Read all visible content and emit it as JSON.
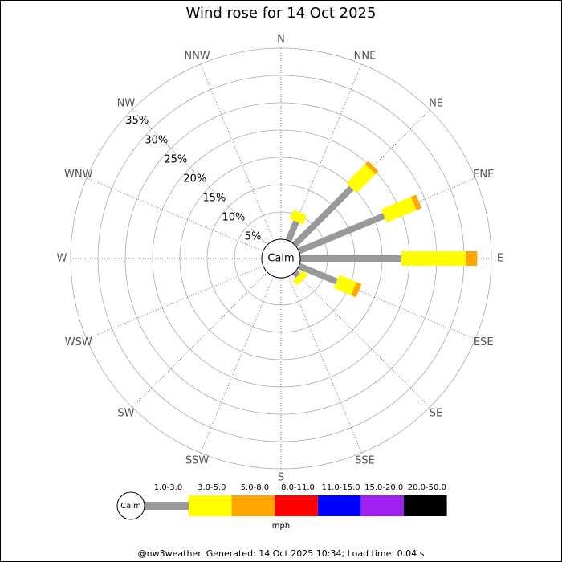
{
  "chart_data": {
    "type": "windrose",
    "title": "Wind rose for 14 Oct 2025",
    "categories": [
      "N",
      "NNE",
      "NE",
      "ENE",
      "E",
      "ESE",
      "SE",
      "SSE",
      "S",
      "SSW",
      "SW",
      "WSW",
      "W",
      "WNW",
      "NW",
      "NNW"
    ],
    "center_label": "Calm",
    "rlim": [
      0,
      35
    ],
    "rticks": [
      {
        "value": 5,
        "label": "5%"
      },
      {
        "value": 10,
        "label": "10%"
      },
      {
        "value": 15,
        "label": "15%"
      },
      {
        "value": 20,
        "label": "20%"
      },
      {
        "value": 25,
        "label": "25%"
      },
      {
        "value": 30,
        "label": "30%"
      },
      {
        "value": 35,
        "label": "35%"
      }
    ],
    "series": [
      {
        "name": "1.0-3.0",
        "color": "#999999",
        "values": [
          0,
          3.8,
          14.7,
          16.9,
          18.5,
          7.5,
          0.9,
          0,
          0,
          0,
          0,
          0,
          0,
          0,
          0,
          0
        ]
      },
      {
        "name": "3.0-5.0",
        "color": "#ffff00",
        "values": [
          0,
          1.8,
          4.9,
          5.9,
          11.8,
          3.4,
          1.2,
          0,
          0,
          0,
          0,
          0,
          0,
          0,
          0,
          0
        ]
      },
      {
        "name": "5.0-8.0",
        "color": "#ffa500",
        "values": [
          0,
          0,
          0.8,
          1.0,
          2.1,
          1.0,
          0,
          0,
          0,
          0,
          0,
          0,
          0,
          0,
          0,
          0
        ]
      },
      {
        "name": "8.0-11.0",
        "color": "#ff0000",
        "values": [
          0,
          0,
          0,
          0,
          0,
          0,
          0,
          0,
          0,
          0,
          0,
          0,
          0,
          0,
          0,
          0
        ]
      },
      {
        "name": "11.0-15.0",
        "color": "#0000ff",
        "values": [
          0,
          0,
          0,
          0,
          0,
          0,
          0,
          0,
          0,
          0,
          0,
          0,
          0,
          0,
          0,
          0
        ]
      },
      {
        "name": "15.0-20.0",
        "color": "#a020f0",
        "values": [
          0,
          0,
          0,
          0,
          0,
          0,
          0,
          0,
          0,
          0,
          0,
          0,
          0,
          0,
          0,
          0
        ]
      },
      {
        "name": "20.0-50.0",
        "color": "#000000",
        "values": [
          0,
          0,
          0,
          0,
          0,
          0,
          0,
          0,
          0,
          0,
          0,
          0,
          0,
          0,
          0,
          0
        ]
      }
    ],
    "unit": "mph",
    "footer": "@nw3weather. Generated: 14 Oct 2025 10:34; Load time: 0.04 s"
  }
}
